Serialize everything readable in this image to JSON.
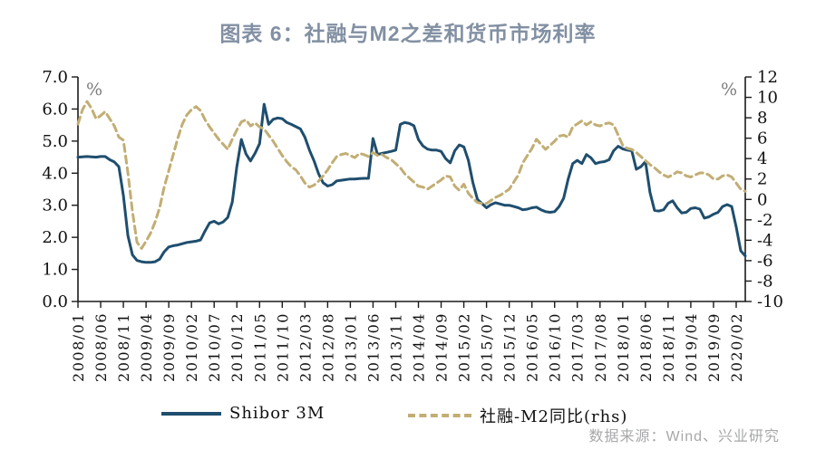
{
  "title": "图表 6：社融与M2之差和货币市场利率",
  "source": "数据来源：Wind、兴业研究",
  "colors": {
    "title": "#8290a3",
    "shibor_line": "#1f4e6e",
    "sf_m2_line": "#c2ae74",
    "axis": "#1a1a1a",
    "percent_label": "#7d7d7d",
    "source_text": "#a7a8aa",
    "background": "#ffffff"
  },
  "chart_data": {
    "type": "line",
    "title": "图表 6：社融与M2之差和货币市场利率",
    "x_frequency": "monthly",
    "x_start": "2008/01",
    "x_end": "2020/04",
    "x_tick_labels": [
      "2008/01",
      "2008/06",
      "2008/11",
      "2009/04",
      "2009/09",
      "2010/02",
      "2010/07",
      "2010/12",
      "2011/05",
      "2011/10",
      "2012/03",
      "2012/08",
      "2013/01",
      "2013/06",
      "2013/11",
      "2014/04",
      "2014/09",
      "2015/02",
      "2015/07",
      "2015/12",
      "2016/05",
      "2016/10",
      "2017/03",
      "2017/08",
      "2018/01",
      "2018/06",
      "2018/11",
      "2019/04",
      "2019/09",
      "2020/02"
    ],
    "x_tick_month_indices": [
      0,
      5,
      10,
      15,
      20,
      25,
      30,
      35,
      40,
      45,
      50,
      55,
      60,
      65,
      70,
      75,
      80,
      85,
      90,
      95,
      100,
      105,
      110,
      115,
      120,
      125,
      130,
      135,
      140,
      145
    ],
    "left_axis": {
      "label": "%",
      "min": 0,
      "max": 7,
      "ticks": [
        "0.0",
        "1.0",
        "2.0",
        "3.0",
        "4.0",
        "5.0",
        "6.0",
        "7.0"
      ]
    },
    "right_axis": {
      "label": "%",
      "min": -10,
      "max": 12,
      "ticks": [
        "-10",
        "-8",
        "-6",
        "-4",
        "-2",
        "0",
        "2",
        "4",
        "6",
        "8",
        "10",
        "12"
      ]
    },
    "grid": "off",
    "legend_position": "bottom",
    "series": [
      {
        "name": "Shibor 3M",
        "axis": "left",
        "style": "solid",
        "color": "#1f4e6e",
        "values": [
          4.5,
          4.51,
          4.52,
          4.51,
          4.5,
          4.52,
          4.52,
          4.42,
          4.35,
          4.2,
          3.3,
          2.05,
          1.45,
          1.28,
          1.24,
          1.22,
          1.22,
          1.24,
          1.32,
          1.55,
          1.7,
          1.74,
          1.76,
          1.8,
          1.84,
          1.86,
          1.88,
          1.92,
          2.2,
          2.45,
          2.5,
          2.42,
          2.48,
          2.62,
          3.1,
          4.2,
          5.05,
          4.6,
          4.38,
          4.62,
          4.92,
          6.15,
          5.52,
          5.68,
          5.72,
          5.7,
          5.58,
          5.52,
          5.45,
          5.38,
          5.12,
          4.72,
          4.38,
          3.98,
          3.7,
          3.6,
          3.64,
          3.76,
          3.78,
          3.8,
          3.82,
          3.82,
          3.83,
          3.84,
          3.84,
          5.08,
          4.58,
          4.62,
          4.65,
          4.68,
          4.72,
          5.52,
          5.58,
          5.55,
          5.48,
          5.05,
          4.85,
          4.75,
          4.72,
          4.72,
          4.68,
          4.45,
          4.32,
          4.7,
          4.88,
          4.82,
          4.4,
          3.7,
          3.18,
          3.05,
          2.92,
          3.02,
          3.08,
          3.04,
          3.0,
          3.0,
          2.96,
          2.92,
          2.86,
          2.88,
          2.92,
          2.94,
          2.86,
          2.8,
          2.78,
          2.8,
          2.96,
          3.22,
          3.82,
          4.3,
          4.4,
          4.3,
          4.58,
          4.48,
          4.3,
          4.34,
          4.36,
          4.42,
          4.7,
          4.84,
          4.76,
          4.72,
          4.7,
          4.12,
          4.2,
          4.36,
          3.4,
          2.84,
          2.82,
          2.86,
          3.06,
          3.14,
          2.92,
          2.76,
          2.78,
          2.9,
          2.92,
          2.88,
          2.6,
          2.64,
          2.72,
          2.78,
          2.96,
          3.02,
          2.96,
          2.32,
          1.58,
          1.42
        ]
      },
      {
        "name": "社融-M2同比(rhs)",
        "axis": "right",
        "style": "dashed",
        "color": "#c2ae74",
        "values": [
          7.4,
          8.8,
          9.6,
          8.9,
          7.9,
          8.2,
          8.6,
          7.9,
          7.2,
          6.1,
          5.8,
          2.6,
          -1.2,
          -4.2,
          -4.8,
          -4.1,
          -3.3,
          -2.2,
          -0.8,
          1.2,
          2.8,
          4.4,
          6.0,
          7.4,
          8.3,
          8.8,
          9.1,
          8.7,
          7.8,
          7.1,
          6.5,
          5.9,
          5.4,
          4.9,
          5.9,
          6.8,
          7.6,
          7.8,
          7.2,
          7.5,
          7.1,
          6.9,
          6.3,
          5.7,
          5.0,
          4.3,
          3.7,
          3.2,
          2.9,
          2.3,
          1.6,
          1.2,
          1.4,
          1.8,
          2.3,
          2.9,
          3.6,
          4.2,
          4.4,
          4.5,
          4.3,
          4.1,
          4.5,
          4.4,
          4.2,
          4.6,
          4.3,
          4.4,
          4.1,
          3.9,
          3.5,
          3.1,
          2.5,
          2.1,
          1.7,
          1.3,
          1.2,
          1.0,
          1.3,
          1.6,
          1.9,
          2.3,
          2.2,
          1.3,
          0.9,
          1.5,
          0.6,
          0.1,
          -0.3,
          -0.4,
          -0.4,
          -0.1,
          0.2,
          0.4,
          0.7,
          1.0,
          1.7,
          2.4,
          3.6,
          4.3,
          5.0,
          5.9,
          5.4,
          4.9,
          5.3,
          5.7,
          6.2,
          6.3,
          6.1,
          7.1,
          7.4,
          7.7,
          7.3,
          7.6,
          7.3,
          7.2,
          7.4,
          7.5,
          7.3,
          6.3,
          5.3,
          5.0,
          4.9,
          4.6,
          4.2,
          3.8,
          3.4,
          3.1,
          2.7,
          2.4,
          2.2,
          2.4,
          2.7,
          2.6,
          2.3,
          2.2,
          2.4,
          2.6,
          2.6,
          2.4,
          2.0,
          2.0,
          2.3,
          2.4,
          2.2,
          1.6,
          1.0,
          0.8
        ]
      }
    ]
  }
}
